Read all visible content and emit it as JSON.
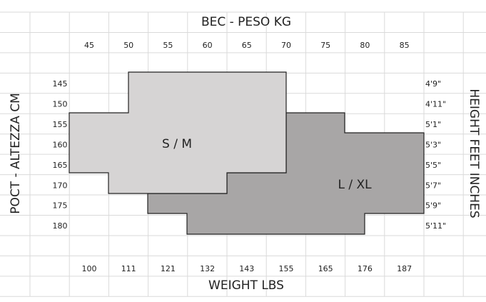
{
  "header": {
    "title": "ВЕС - PESO KG"
  },
  "footer": {
    "title": "WEIGHT LBS"
  },
  "left_axis": {
    "title": "РОСТ - ALTEZZA CM"
  },
  "right_axis": {
    "title": "HEIGHT FEET INCHES"
  },
  "kg_labels": [
    "45",
    "50",
    "55",
    "60",
    "65",
    "70",
    "75",
    "80",
    "85"
  ],
  "lbs_labels": [
    "100",
    "111",
    "121",
    "132",
    "143",
    "155",
    "165",
    "176",
    "187"
  ],
  "cm_labels": [
    "145",
    "150",
    "155",
    "160",
    "165",
    "170",
    "175",
    "180"
  ],
  "feet_labels": [
    "4'9\"",
    "4'11\"",
    "5'1\"",
    "5'3\"",
    "5'5\"",
    "5'7\"",
    "5'9\"",
    "5'11\""
  ],
  "regions": [
    {
      "label": "S / M"
    },
    {
      "label": "L / XL"
    }
  ]
}
